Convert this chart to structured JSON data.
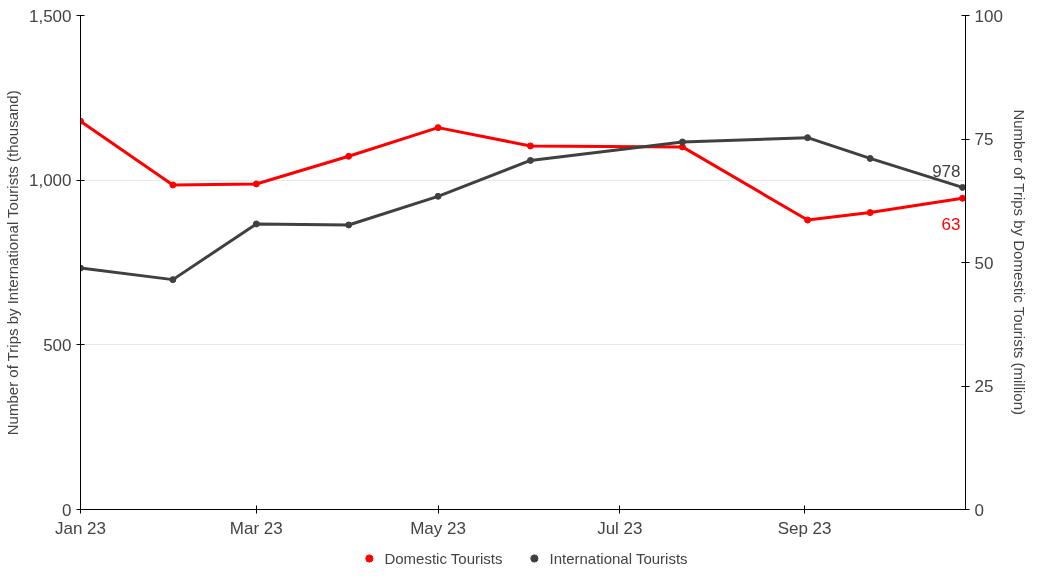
{
  "chart_data": {
    "type": "line",
    "xlabel": null,
    "ylabel": "Number of Trips by International Tourists (thousand)",
    "y2label": "Number of Trips by Domestic Tourists (million)",
    "x": [
      "2023-01-01",
      "2023-02-01",
      "2023-03-01",
      "2023-04-01",
      "2023-05-01",
      "2023-06-01",
      "2023-07-22",
      "2023-09-02",
      "2023-09-23",
      "2023-10-24"
    ],
    "xlim": [
      "2023-01-01",
      "2023-10-25"
    ],
    "xticks": [
      {
        "value": "2023-01-01",
        "label": "Jan 23"
      },
      {
        "value": "2023-03-01",
        "label": "Mar 23"
      },
      {
        "value": "2023-05-01",
        "label": "May 23"
      },
      {
        "value": "2023-07-01",
        "label": "Jul 23"
      },
      {
        "value": "2023-09-01",
        "label": "Sep 23"
      }
    ],
    "ylim": [
      0,
      1500
    ],
    "yticks": [
      0,
      {
        "value": 500,
        "label": "500"
      },
      {
        "value": 1000,
        "label": "1,000"
      },
      {
        "value": 1500,
        "label": "1,500"
      }
    ],
    "y2lim": [
      0,
      100
    ],
    "y2ticks": [
      0,
      25,
      50,
      75,
      100
    ],
    "series": [
      {
        "name": "Domestic Tourists",
        "color": "#ff0000",
        "axis": "y2",
        "values": [
          78.6,
          65.7,
          65.9,
          71.5,
          77.3,
          73.6,
          73.4,
          58.6,
          60.1,
          63
        ],
        "value_labels": [
          null,
          null,
          null,
          null,
          null,
          null,
          null,
          null,
          null,
          "63"
        ]
      },
      {
        "name": "International Tourists",
        "color": "#404040",
        "values": [
          733,
          698,
          867,
          864,
          951,
          1060,
          1116,
          1129,
          1066,
          978
        ],
        "value_labels": [
          null,
          null,
          null,
          null,
          null,
          null,
          null,
          null,
          null,
          "978"
        ]
      }
    ],
    "grid": "y",
    "legend": "bottom",
    "marker": "circle",
    "line_style": "solid"
  }
}
